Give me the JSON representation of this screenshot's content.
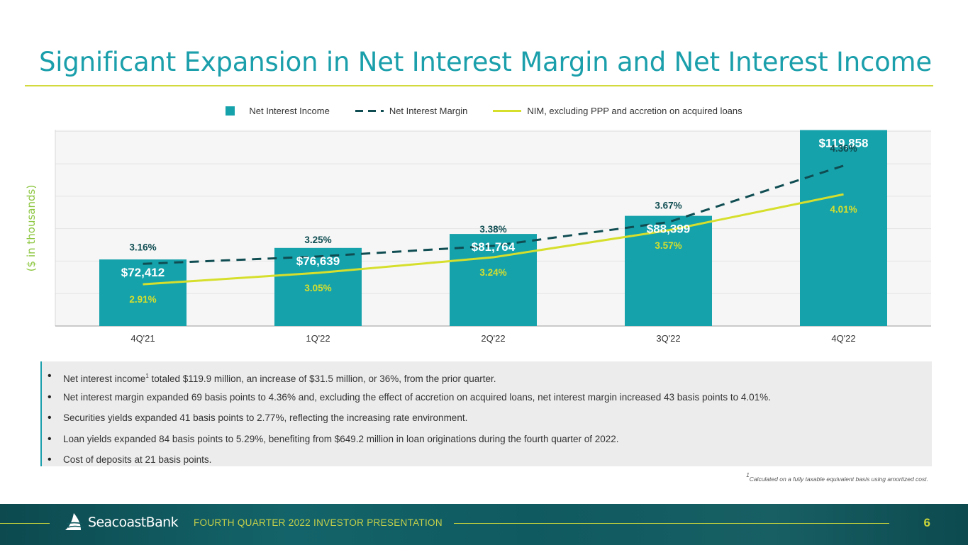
{
  "title": "Significant Expansion in Net Interest Margin and Net Interest Income",
  "legend": {
    "nii": "Net Interest Income",
    "nim": "Net Interest Margin",
    "nim_ex": "NIM, excluding PPP and accretion on acquired loans"
  },
  "y_axis_label": "($ in thousands)",
  "chart_data": {
    "type": "bar",
    "title": "",
    "ylabel": "($ in thousands)",
    "categories": [
      "4Q'21",
      "1Q'22",
      "2Q'22",
      "3Q'22",
      "4Q'22"
    ],
    "series": [
      {
        "name": "Net Interest Income",
        "type": "bar",
        "values": [
          72412,
          76639,
          81764,
          88399,
          119858
        ],
        "labels": [
          "$72,412",
          "$76,639",
          "$81,764",
          "$88,399",
          "$119,858"
        ]
      },
      {
        "name": "Net Interest Margin",
        "type": "line",
        "style": "dashed",
        "values": [
          3.16,
          3.25,
          3.38,
          3.67,
          4.36
        ],
        "labels": [
          "3.16%",
          "3.25%",
          "3.38%",
          "3.67%",
          "4.36%"
        ]
      },
      {
        "name": "NIM, excluding PPP and accretion on acquired loans",
        "type": "line",
        "style": "solid",
        "values": [
          2.91,
          3.05,
          3.24,
          3.57,
          4.01
        ],
        "labels": [
          "2.91%",
          "3.05%",
          "3.24%",
          "3.57%",
          "4.01%"
        ]
      }
    ],
    "nii_range": [
      48000,
      120000
    ],
    "nim_range": [
      2.4,
      4.8
    ],
    "colors": {
      "bar": "#16a2ab",
      "nim": "#0f4d52",
      "nim_ex": "#d6df2c",
      "grid": "#e3e3e3",
      "plot_bg": "#f6f6f6"
    }
  },
  "bullets": [
    {
      "pre": "Net interest income",
      "sup": "1",
      "post": " totaled $119.9 million, an increase of $31.5 million, or 36%, from the prior quarter."
    },
    {
      "pre": "Net interest margin expanded 69 basis points to 4.36% and, excluding the effect of accretion on acquired loans, net interest margin increased 43 basis points to 4.01%."
    },
    {
      "pre": "Securities yields expanded 41 basis points to 2.77%, reflecting the increasing rate environment."
    },
    {
      "pre": "Loan yields expanded 84 basis points to 5.29%, benefiting from $649.2 million in loan originations during the fourth quarter of 2022."
    },
    {
      "pre": "Cost of deposits at 21 basis points."
    }
  ],
  "footnote": {
    "sup": "1",
    "text": "Calculated on a fully taxable equivalent basis using amortized cost."
  },
  "footer": {
    "logo": "SeacoastBank",
    "caption": "FOURTH QUARTER 2022 INVESTOR PRESENTATION",
    "page": "6"
  }
}
